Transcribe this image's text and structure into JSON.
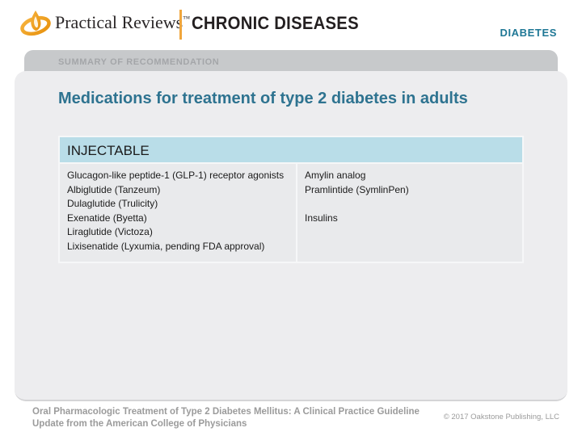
{
  "header": {
    "brand": "Practical Reviews",
    "trademark": "™",
    "publication": "CHRONIC DISEASES",
    "topic": "DIABETES"
  },
  "tab": {
    "label": "SUMMARY OF RECOMMENDATION"
  },
  "slide": {
    "title": "Medications for treatment of type 2 diabetes in adults",
    "table": {
      "header": "INJECTABLE",
      "columns": [
        {
          "items": [
            "Glucagon-like peptide-1 (GLP-1) receptor agonists",
            "Albiglutide (Tanzeum)",
            "Dulaglutide (Trulicity)",
            "Exenatide (Byetta)",
            "Liraglutide (Victoza)",
            "Lixisenatide (Lyxumia, pending FDA approval)"
          ]
        },
        {
          "items": [
            "Amylin analog",
            "Pramlintide (SymlinPen)",
            "",
            "Insulins"
          ]
        }
      ]
    }
  },
  "footer": {
    "reference_line1": "Oral Pharmacologic Treatment of Type 2 Diabetes Mellitus: A Clinical Practice Guideline",
    "reference_line2": "Update from the American College of Physicians",
    "copyright": "© 2017 Oakstone Publishing, LLC"
  },
  "colors": {
    "teal_title": "#2e7390",
    "teal_topic": "#1e7795",
    "gold": "#f0a63c",
    "table_header_bg": "#b9dde8",
    "tab_bg": "#c7c9cb",
    "tab_text": "#a4a6a9",
    "panel_bg": "#ededef",
    "footer_text": "#9b9b9b"
  }
}
